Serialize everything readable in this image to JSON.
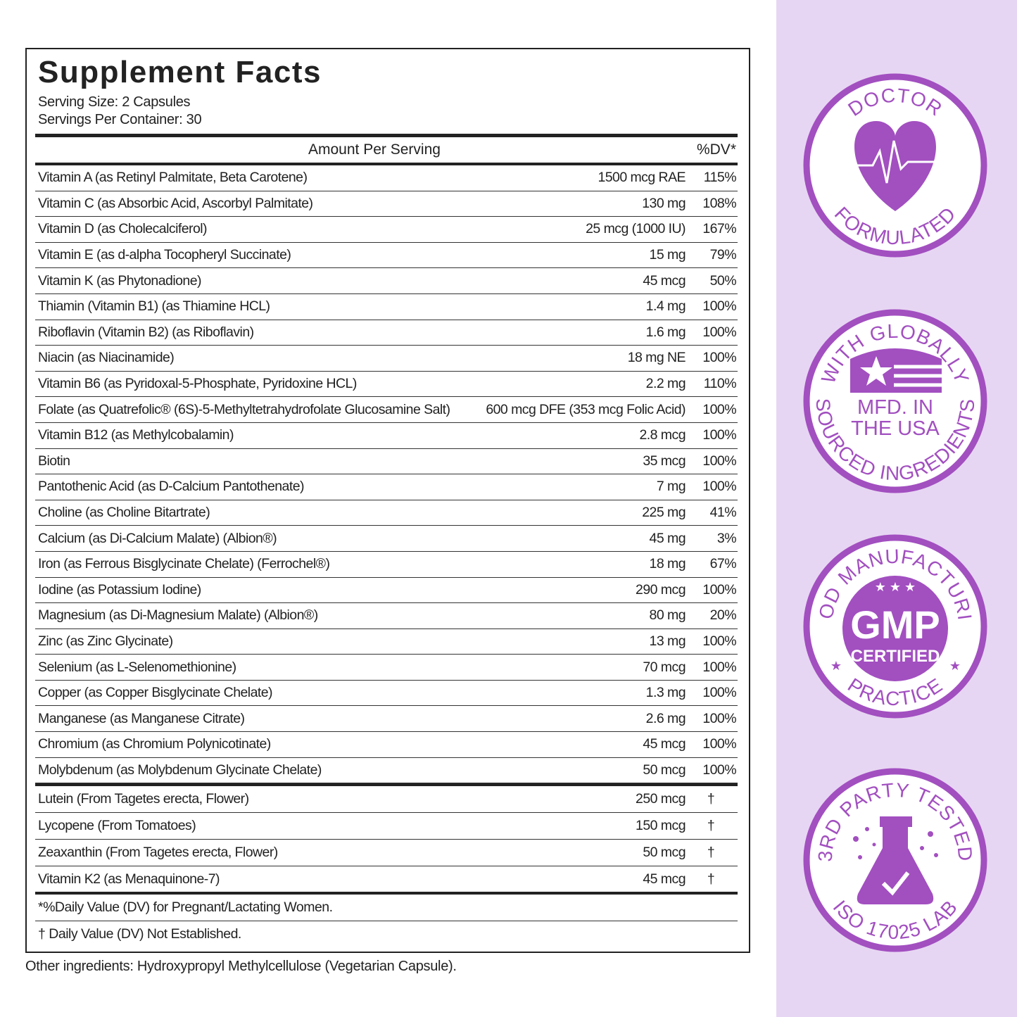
{
  "header": {
    "title": "Supplement Facts",
    "serving_size": "Serving Size: 2 Capsules",
    "servings_per_container": "Servings Per Container: 30"
  },
  "table": {
    "columns": [
      "Amount Per Serving",
      "%DV*"
    ],
    "rows": [
      [
        "Vitamin A (as Retinyl Palmitate, Beta Carotene)",
        "1500 mcg RAE",
        "115%"
      ],
      [
        "Vitamin C (as Absorbic Acid, Ascorbyl  Palmitate)",
        "130 mg",
        "108%"
      ],
      [
        "Vitamin D (as Cholecalciferol)",
        "25 mcg (1000 IU)",
        "167%"
      ],
      [
        "Vitamin E (as d-alpha Tocopheryl Succinate)",
        "15 mg",
        "79%"
      ],
      [
        "Vitamin K (as Phytonadione)",
        "45 mcg",
        "50%"
      ],
      [
        "Thiamin (Vitamin B1) (as Thiamine HCL)",
        "1.4 mg",
        "100%"
      ],
      [
        "Riboflavin (Vitamin B2) (as Riboflavin)",
        "1.6 mg",
        "100%"
      ],
      [
        "Niacin (as Niacinamide)",
        "18 mg NE",
        "100%"
      ],
      [
        "Vitamin B6 (as Pyridoxal-5-Phosphate,  Pyridoxine HCL)",
        "2.2 mg",
        "110%"
      ],
      [
        "Folate (as Quatrefolic® (6S)-5-Methyltetrahydrofolate Glucosamine Salt)",
        "600 mcg DFE (353 mcg Folic Acid)",
        "100%"
      ],
      [
        "Vitamin B12 (as Methylcobalamin)",
        "2.8 mcg",
        "100%"
      ],
      [
        "Biotin",
        "35 mcg",
        "100%"
      ],
      [
        "Pantothenic Acid (as D-Calcium Pantothenate)",
        "7 mg",
        "100%"
      ],
      [
        "Choline (as Choline Bitartrate)",
        "225 mg",
        "41%"
      ],
      [
        "Calcium (as Di-Calcium Malate) (Albion®)",
        "45 mg",
        "3%"
      ],
      [
        "Iron (as Ferrous Bisglycinate Chelate) (Ferrochel®)",
        "18 mg",
        "67%"
      ],
      [
        "Iodine (as Potassium Iodine)",
        "290 mcg",
        "100%"
      ],
      [
        "Magnesium (as Di-Magnesium Malate) (Albion®)",
        "80 mg",
        "20%"
      ],
      [
        "Zinc (as Zinc Glycinate)",
        "13 mg",
        "100%"
      ],
      [
        "Selenium (as L-Selenomethionine)",
        "70 mcg",
        "100%"
      ],
      [
        "Copper (as Copper Bisglycinate Chelate)",
        "1.3 mg",
        "100%"
      ],
      [
        "Manganese (as Manganese Citrate)",
        "2.6 mg",
        "100%"
      ],
      [
        "Chromium (as Chromium Polynicotinate)",
        "45 mcg",
        "100%"
      ],
      [
        "Molybdenum (as Molybdenum Glycinate Chelate)",
        "50 mcg",
        "100%"
      ]
    ],
    "other_rows": [
      [
        "Lutein (From Tagetes erecta, Flower)",
        "250 mcg",
        "†"
      ],
      [
        "Lycopene (From Tomatoes)",
        "150 mcg",
        "†"
      ],
      [
        "Zeaxanthin (From Tagetes erecta, Flower)",
        "50 mcg",
        "†"
      ],
      [
        "Vitamin K2 (as Menaquinone-7)",
        "45 mcg",
        "†"
      ]
    ]
  },
  "footnotes": [
    "*%Daily Value (DV) for Pregnant/Lactating Women.",
    "† Daily Value (DV) Not Established."
  ],
  "other_ingredients": "Other ingredients: Hydroxypropyl Methylcellulose (Vegetarian Capsule).",
  "badges": [
    {
      "top": "DOCTOR",
      "bottom": "FORMULATED"
    },
    {
      "top": "WITH GLOBALLY",
      "bottom": "SOURCED INGREDIENTS",
      "center": [
        "MFD. IN",
        "THE USA"
      ]
    },
    {
      "top": "GOOD MANUFACTURING",
      "bottom": "PRACTICE",
      "center": [
        "GMP",
        "CERTIFIED"
      ]
    },
    {
      "top": "3RD PARTY TESTED",
      "bottom": "ISO 17025 LAB"
    }
  ]
}
